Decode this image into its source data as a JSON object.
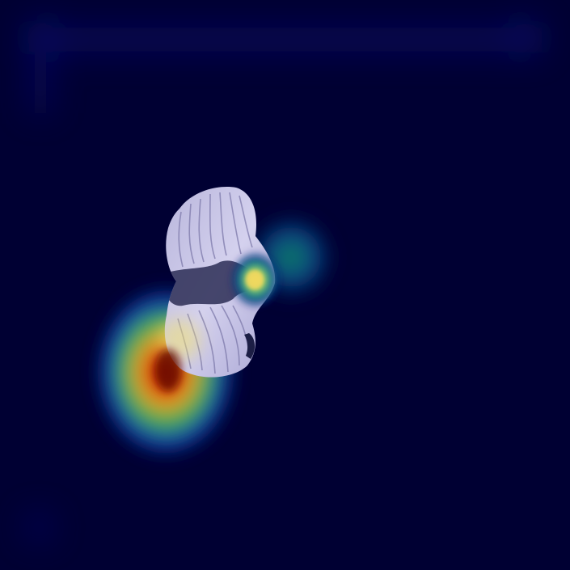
{
  "image": {
    "kind": "heatmap-overlay",
    "subject": "specimen-with-attention-map",
    "colors": {
      "background": "#000033",
      "specimen_fill": "#c9c6e6",
      "specimen_dark": "#2b2d55",
      "heat_low": "#0a1a8c",
      "heat_mid": "#10a070",
      "heat_high": "#d8e84a",
      "heat_peak": "#8a0a00"
    },
    "colormap": "jet"
  }
}
